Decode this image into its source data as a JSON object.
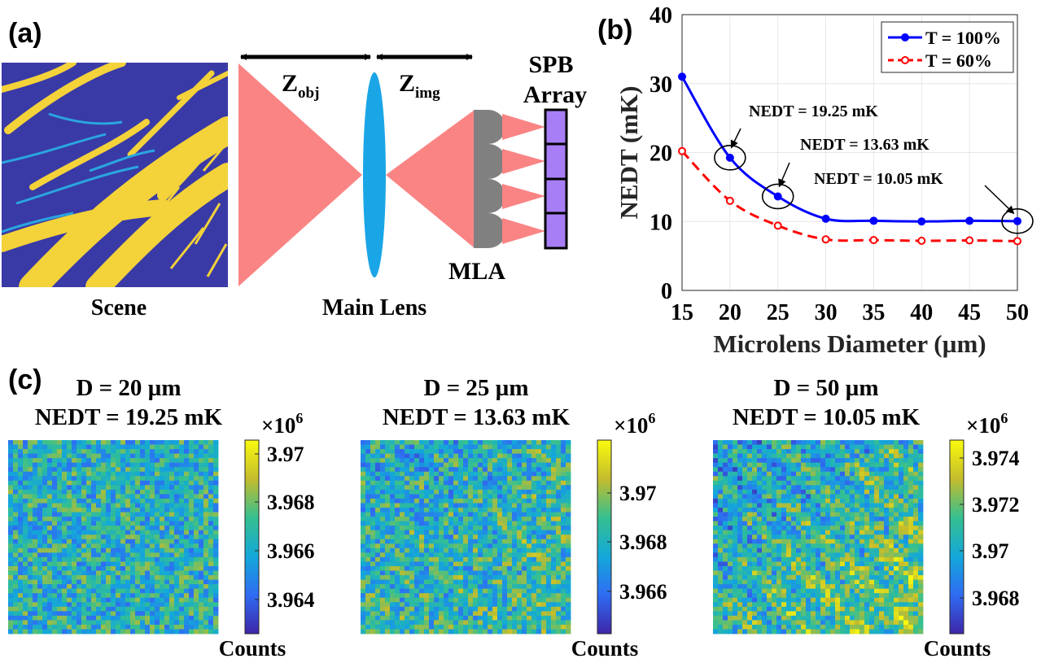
{
  "panel_labels": {
    "a": "(a)",
    "b": "(b)",
    "c": "(c)"
  },
  "panel_a": {
    "scene_label": "Scene",
    "z_obj_base": "Z",
    "z_obj_sub": "obj",
    "z_img_base": "Z",
    "z_img_sub": "img",
    "main_lens_label": "Main Lens",
    "mla_label": "MLA",
    "spb_label_line1": "SPB",
    "spb_label_line2": "Array",
    "colors": {
      "beam": "#fa8484",
      "lens": "#1aa6e6",
      "mla": "#808080",
      "spb": "#a77ef6",
      "scene_bg": "#3a3aa6",
      "scene_fg": "#f3d23a"
    }
  },
  "chart_data": [
    {
      "type": "line",
      "title": "",
      "xlabel": "Microlens Diameter (µm)",
      "ylabel": "NEDT (mK)",
      "xlim": [
        15,
        50
      ],
      "ylim": [
        0,
        40
      ],
      "x_ticks": [
        "15",
        "20",
        "25",
        "30",
        "35",
        "40",
        "45",
        "50"
      ],
      "y_ticks": [
        "0",
        "10",
        "20",
        "30",
        "40"
      ],
      "x": [
        15,
        20,
        25,
        30,
        35,
        40,
        45,
        50
      ],
      "series": [
        {
          "name": "T = 100%",
          "color": "#0000ff",
          "style": "solid",
          "values": [
            31.0,
            19.25,
            13.63,
            10.4,
            10.1,
            10.0,
            10.1,
            10.05
          ]
        },
        {
          "name": "T = 60%",
          "color": "#ff0000",
          "style": "dashed",
          "values": [
            20.2,
            13.0,
            9.4,
            7.4,
            7.3,
            7.2,
            7.25,
            7.15
          ]
        }
      ],
      "annotations": [
        "NEDT = 19.25 mK",
        "NEDT = 13.63 mK",
        "NEDT = 10.05 mK"
      ],
      "legend": "top-right",
      "grid": true
    },
    {
      "type": "heatmap",
      "title_line1": "D = 20 µm",
      "title_line2": "NEDT = 19.25 mK",
      "colorbar_exponent": "×10",
      "colorbar_exponent_power": "6",
      "colorbar_label": "Counts",
      "colorbar_ticks": [
        "3.97",
        "3.968",
        "3.966",
        "3.964"
      ]
    },
    {
      "type": "heatmap",
      "title_line1": "D = 25 µm",
      "title_line2": "NEDT = 13.63 mK",
      "colorbar_exponent": "×10",
      "colorbar_exponent_power": "6",
      "colorbar_label": "Counts",
      "colorbar_ticks": [
        "3.97",
        "3.968",
        "3.966"
      ]
    },
    {
      "type": "heatmap",
      "title_line1": "D = 50 µm",
      "title_line2": "NEDT = 10.05 mK",
      "colorbar_exponent": "×10",
      "colorbar_exponent_power": "6",
      "colorbar_label": "Counts",
      "colorbar_ticks": [
        "3.974",
        "3.972",
        "3.97",
        "3.968"
      ]
    }
  ]
}
